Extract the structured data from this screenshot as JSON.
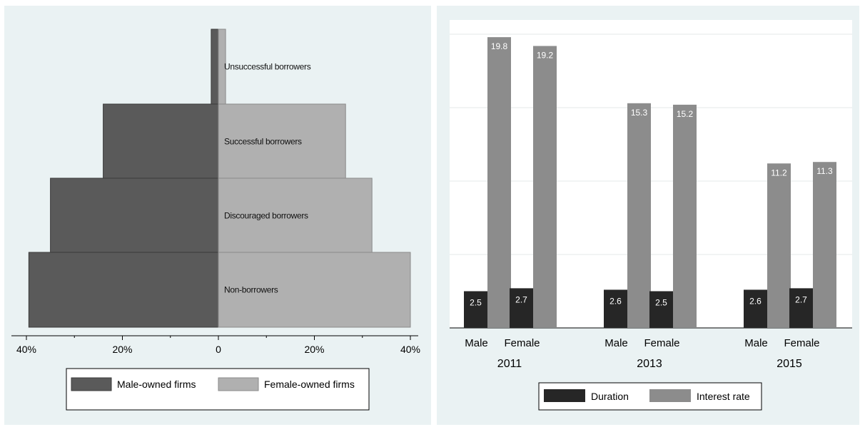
{
  "chart_data": [
    {
      "type": "bar",
      "orientation": "horizontal-diverging",
      "categories": [
        "Unsuccessful borrowers",
        "Successful borrowers",
        "Discouraged borrowers",
        "Non-borrowers"
      ],
      "series": [
        {
          "name": "Male-owned firms",
          "values": [
            1.5,
            24,
            35,
            39.5
          ],
          "color": "#5a5a5a"
        },
        {
          "name": "Female-owned firms",
          "values": [
            1.5,
            26.5,
            32,
            40
          ],
          "color": "#b0b0b0"
        }
      ],
      "xlim": [
        -40,
        40
      ],
      "xticks": [
        "40%",
        "20%",
        "0",
        "20%",
        "40%"
      ],
      "xtick_values": [
        -40,
        -20,
        0,
        20,
        40
      ],
      "legend": "bottom",
      "grid": false
    },
    {
      "type": "bar",
      "groups": [
        {
          "year": "2011",
          "categories": [
            "Male",
            "Female"
          ]
        },
        {
          "year": "2013",
          "categories": [
            "Male",
            "Female"
          ]
        },
        {
          "year": "2015",
          "categories": [
            "Male",
            "Female"
          ]
        }
      ],
      "series": [
        {
          "name": "Duration",
          "values": [
            2.5,
            2.7,
            2.6,
            2.5,
            2.6,
            2.7
          ],
          "labels": [
            "2.5",
            "2.7",
            "2.6",
            "2.5",
            "2.6",
            "2.7"
          ],
          "color": "#262626"
        },
        {
          "name": "Interest rate",
          "values": [
            19.8,
            19.2,
            15.3,
            15.2,
            11.2,
            11.3
          ],
          "labels": [
            "19.8",
            "19.2",
            "15.3",
            "15.2",
            "11.2",
            "11.3"
          ],
          "color": "#8c8c8c"
        }
      ],
      "ylim": [
        0,
        20
      ],
      "legend": "bottom",
      "grid": true
    }
  ]
}
